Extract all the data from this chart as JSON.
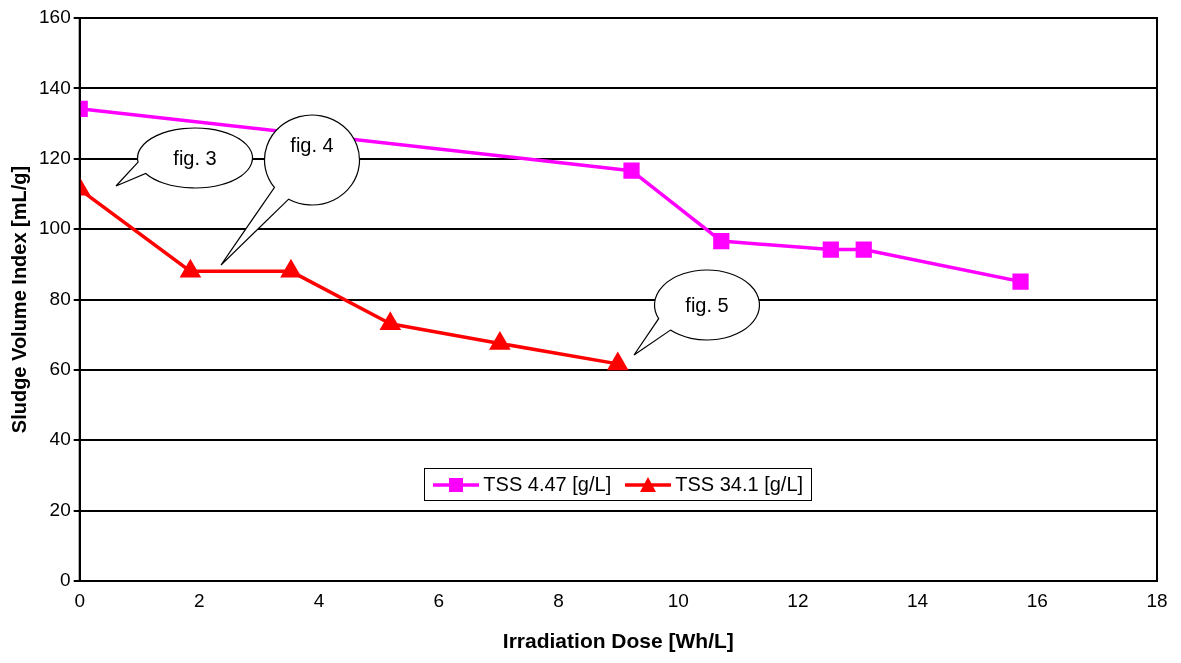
{
  "chart_data": {
    "type": "line",
    "xlabel": "Irradiation Dose [Wh/L]",
    "ylabel": "Sludge Volume Index [mL/g]",
    "xlim": [
      0,
      18
    ],
    "xticks": [
      0,
      2,
      4,
      6,
      8,
      10,
      12,
      14,
      16,
      18
    ],
    "ylim": [
      0,
      160
    ],
    "yticks": [
      0,
      20,
      40,
      60,
      80,
      100,
      120,
      140,
      160
    ],
    "grid": "y",
    "legend": "bottom",
    "line_style": "solid",
    "series": [
      {
        "name": "TSS 4.47 [g/L]",
        "color": "#ff00ff",
        "marker": "square",
        "x": [
          0,
          9.22,
          10.72,
          12.55,
          13.1,
          15.72
        ],
        "values": [
          134.2,
          116.6,
          96.6,
          94.2,
          94.2,
          85.1
        ]
      },
      {
        "name": "TSS 34.1 [g/L]",
        "color": "#ff0000",
        "marker": "triangle",
        "x": [
          0,
          1.85,
          3.53,
          5.19,
          7.02,
          8.99
        ],
        "values": [
          111.3,
          88,
          88,
          73.1,
          67.5,
          61.7
        ]
      }
    ],
    "annotations": [
      "fig. 3",
      "fig. 4",
      "fig. 5"
    ]
  }
}
